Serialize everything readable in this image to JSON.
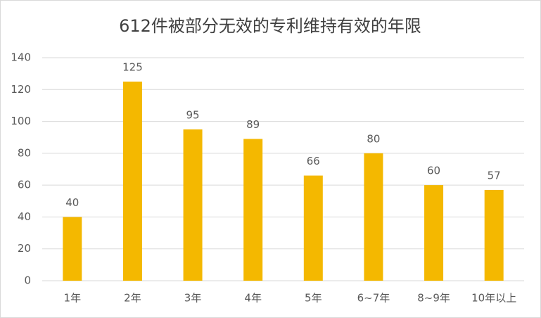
{
  "chart_data": {
    "type": "bar",
    "title": "612件被部分无效的专利维持有效的年限",
    "categories": [
      "1年",
      "2年",
      "3年",
      "4年",
      "5年",
      "6~7年",
      "8~9年",
      "10年以上"
    ],
    "values": [
      40,
      125,
      95,
      89,
      66,
      80,
      60,
      57
    ],
    "color": "#f4b800",
    "ylim": [
      0,
      140
    ],
    "yticks": [
      0,
      20,
      40,
      60,
      80,
      100,
      120,
      140
    ],
    "grid": true
  }
}
